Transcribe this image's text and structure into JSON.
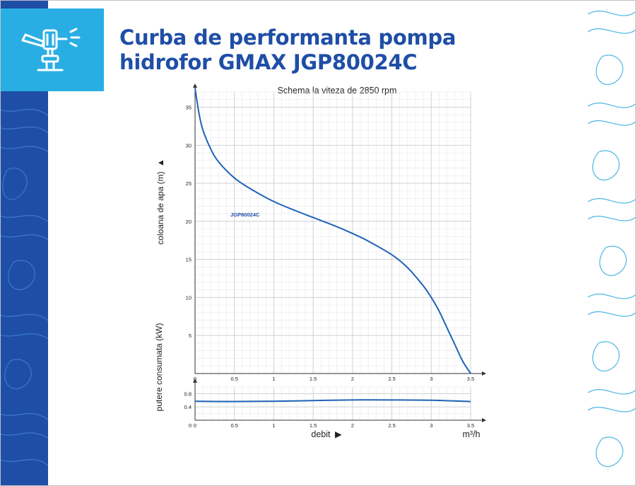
{
  "page": {
    "title_line1": "Curba de performanta pompa",
    "title_line2": "hidrofor GMAX JGP80024C",
    "icon": "sprinkler-icon",
    "colors": {
      "brand_blue": "#1f4ea6",
      "light_blue": "#29aee4",
      "curve": "#1f63b8"
    }
  },
  "chart_data": [
    {
      "type": "line",
      "title": "Schema la viteza de 2850 rpm",
      "ylabel": "coloana de apa (m)",
      "xlabel": "debit",
      "xunit": "m³/h",
      "xlim": [
        0,
        3.5
      ],
      "ylim": [
        0,
        37
      ],
      "xticks": [
        "0",
        "0.5",
        "1",
        "1.5",
        "2",
        "2.5",
        "3",
        "3.5"
      ],
      "yticks": [
        "5",
        "10",
        "15",
        "20",
        "25",
        "30",
        "35"
      ],
      "grid": true,
      "series": [
        {
          "name": "JGP80024C",
          "x": [
            0,
            0.05,
            0.1,
            0.2,
            0.3,
            0.5,
            0.7,
            1.0,
            1.3,
            1.5,
            1.8,
            2.0,
            2.2,
            2.5,
            2.7,
            2.9,
            3.0,
            3.1,
            3.2,
            3.3,
            3.4,
            3.5
          ],
          "y": [
            37.5,
            34.2,
            32.0,
            29.5,
            27.8,
            25.7,
            24.3,
            22.6,
            21.3,
            20.5,
            19.3,
            18.4,
            17.4,
            15.6,
            13.9,
            11.5,
            10.0,
            8.2,
            6.0,
            3.8,
            1.6,
            0
          ]
        }
      ]
    },
    {
      "type": "line",
      "ylabel": "putere consumata (kW)",
      "xlim": [
        0,
        3.5
      ],
      "ylim": [
        0,
        1.0
      ],
      "xticks": [
        "0",
        "0.5",
        "1",
        "1.5",
        "2",
        "2.5",
        "3",
        "3.5"
      ],
      "yticks": [
        "0.4",
        "0.8"
      ],
      "grid": true,
      "series": [
        {
          "x": [
            0,
            0.5,
            1.0,
            1.5,
            2.0,
            2.5,
            3.0,
            3.5
          ],
          "y": [
            0.57,
            0.56,
            0.57,
            0.59,
            0.61,
            0.61,
            0.6,
            0.56
          ]
        }
      ]
    }
  ]
}
